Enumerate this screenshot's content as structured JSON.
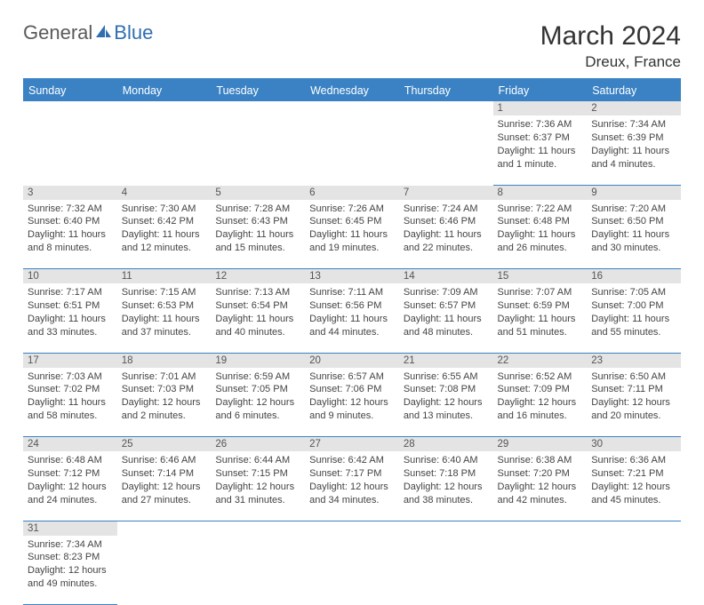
{
  "logo": {
    "general": "General",
    "blue": "Blue"
  },
  "header": {
    "month": "March 2024",
    "location": "Dreux, France"
  },
  "colors": {
    "headerBg": "#3b82c4",
    "dayBg": "#e4e4e4",
    "border": "#3b82c4"
  },
  "weekdays": [
    "Sunday",
    "Monday",
    "Tuesday",
    "Wednesday",
    "Thursday",
    "Friday",
    "Saturday"
  ],
  "weeks": [
    [
      null,
      null,
      null,
      null,
      null,
      {
        "n": "1",
        "sr": "7:36 AM",
        "ss": "6:37 PM",
        "dl": "11 hours and 1 minute."
      },
      {
        "n": "2",
        "sr": "7:34 AM",
        "ss": "6:39 PM",
        "dl": "11 hours and 4 minutes."
      }
    ],
    [
      {
        "n": "3",
        "sr": "7:32 AM",
        "ss": "6:40 PM",
        "dl": "11 hours and 8 minutes."
      },
      {
        "n": "4",
        "sr": "7:30 AM",
        "ss": "6:42 PM",
        "dl": "11 hours and 12 minutes."
      },
      {
        "n": "5",
        "sr": "7:28 AM",
        "ss": "6:43 PM",
        "dl": "11 hours and 15 minutes."
      },
      {
        "n": "6",
        "sr": "7:26 AM",
        "ss": "6:45 PM",
        "dl": "11 hours and 19 minutes."
      },
      {
        "n": "7",
        "sr": "7:24 AM",
        "ss": "6:46 PM",
        "dl": "11 hours and 22 minutes."
      },
      {
        "n": "8",
        "sr": "7:22 AM",
        "ss": "6:48 PM",
        "dl": "11 hours and 26 minutes."
      },
      {
        "n": "9",
        "sr": "7:20 AM",
        "ss": "6:50 PM",
        "dl": "11 hours and 30 minutes."
      }
    ],
    [
      {
        "n": "10",
        "sr": "7:17 AM",
        "ss": "6:51 PM",
        "dl": "11 hours and 33 minutes."
      },
      {
        "n": "11",
        "sr": "7:15 AM",
        "ss": "6:53 PM",
        "dl": "11 hours and 37 minutes."
      },
      {
        "n": "12",
        "sr": "7:13 AM",
        "ss": "6:54 PM",
        "dl": "11 hours and 40 minutes."
      },
      {
        "n": "13",
        "sr": "7:11 AM",
        "ss": "6:56 PM",
        "dl": "11 hours and 44 minutes."
      },
      {
        "n": "14",
        "sr": "7:09 AM",
        "ss": "6:57 PM",
        "dl": "11 hours and 48 minutes."
      },
      {
        "n": "15",
        "sr": "7:07 AM",
        "ss": "6:59 PM",
        "dl": "11 hours and 51 minutes."
      },
      {
        "n": "16",
        "sr": "7:05 AM",
        "ss": "7:00 PM",
        "dl": "11 hours and 55 minutes."
      }
    ],
    [
      {
        "n": "17",
        "sr": "7:03 AM",
        "ss": "7:02 PM",
        "dl": "11 hours and 58 minutes."
      },
      {
        "n": "18",
        "sr": "7:01 AM",
        "ss": "7:03 PM",
        "dl": "12 hours and 2 minutes."
      },
      {
        "n": "19",
        "sr": "6:59 AM",
        "ss": "7:05 PM",
        "dl": "12 hours and 6 minutes."
      },
      {
        "n": "20",
        "sr": "6:57 AM",
        "ss": "7:06 PM",
        "dl": "12 hours and 9 minutes."
      },
      {
        "n": "21",
        "sr": "6:55 AM",
        "ss": "7:08 PM",
        "dl": "12 hours and 13 minutes."
      },
      {
        "n": "22",
        "sr": "6:52 AM",
        "ss": "7:09 PM",
        "dl": "12 hours and 16 minutes."
      },
      {
        "n": "23",
        "sr": "6:50 AM",
        "ss": "7:11 PM",
        "dl": "12 hours and 20 minutes."
      }
    ],
    [
      {
        "n": "24",
        "sr": "6:48 AM",
        "ss": "7:12 PM",
        "dl": "12 hours and 24 minutes."
      },
      {
        "n": "25",
        "sr": "6:46 AM",
        "ss": "7:14 PM",
        "dl": "12 hours and 27 minutes."
      },
      {
        "n": "26",
        "sr": "6:44 AM",
        "ss": "7:15 PM",
        "dl": "12 hours and 31 minutes."
      },
      {
        "n": "27",
        "sr": "6:42 AM",
        "ss": "7:17 PM",
        "dl": "12 hours and 34 minutes."
      },
      {
        "n": "28",
        "sr": "6:40 AM",
        "ss": "7:18 PM",
        "dl": "12 hours and 38 minutes."
      },
      {
        "n": "29",
        "sr": "6:38 AM",
        "ss": "7:20 PM",
        "dl": "12 hours and 42 minutes."
      },
      {
        "n": "30",
        "sr": "6:36 AM",
        "ss": "7:21 PM",
        "dl": "12 hours and 45 minutes."
      }
    ],
    [
      {
        "n": "31",
        "sr": "7:34 AM",
        "ss": "8:23 PM",
        "dl": "12 hours and 49 minutes."
      },
      null,
      null,
      null,
      null,
      null,
      null
    ]
  ],
  "labels": {
    "sunrise": "Sunrise: ",
    "sunset": "Sunset: ",
    "daylight": "Daylight: "
  }
}
